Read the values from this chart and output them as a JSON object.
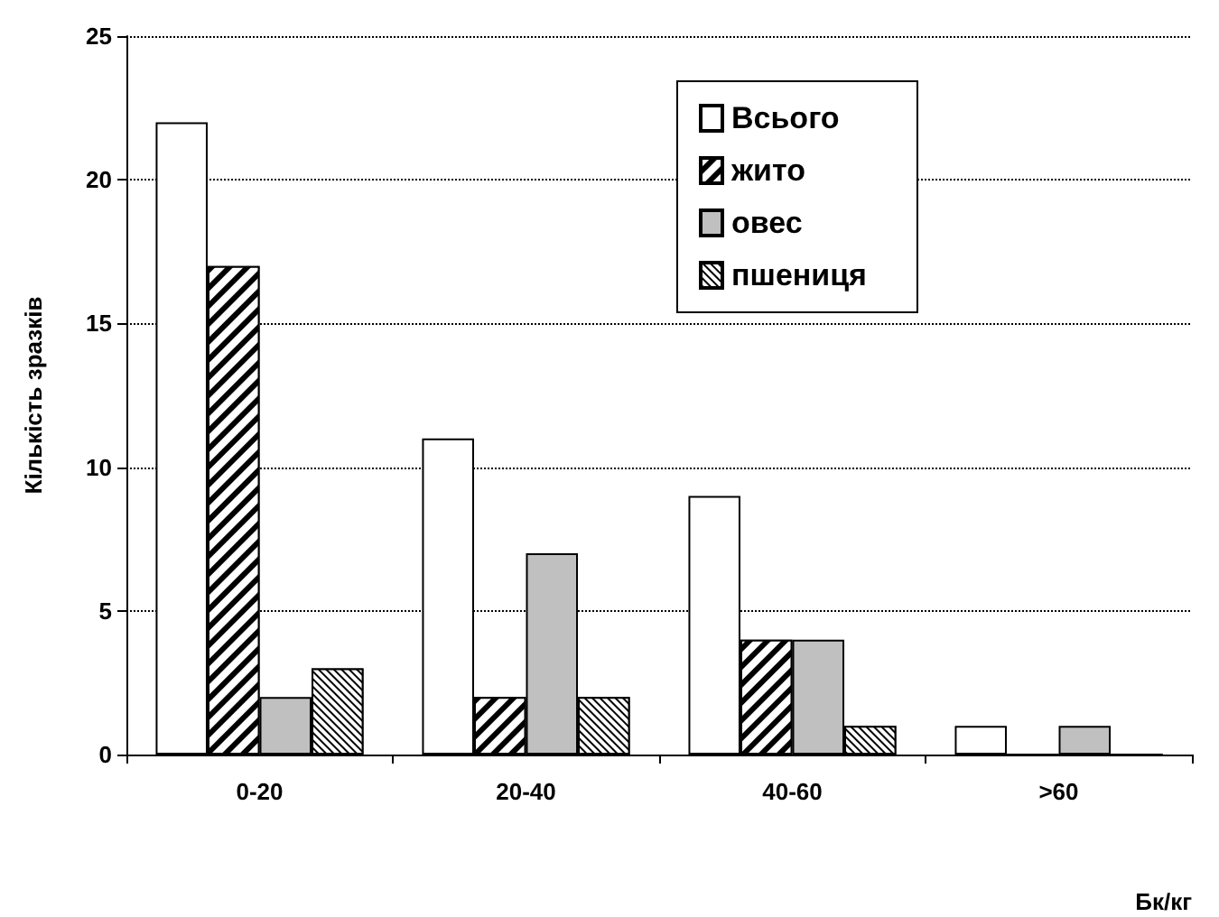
{
  "chart_data": {
    "type": "bar",
    "xlabel": "Бк/кг",
    "ylabel": "Кількість зразків",
    "categories": [
      "0-20",
      "20-40",
      "40-60",
      ">60"
    ],
    "series": [
      {
        "name": "Всього",
        "color": "#ffffff",
        "values": [
          22,
          11,
          9,
          1
        ]
      },
      {
        "name": "жито",
        "color": "#000000",
        "values": [
          17,
          2,
          4,
          0
        ]
      },
      {
        "name": "овес",
        "color": "#c0c0c0",
        "values": [
          2,
          7,
          4,
          1
        ]
      },
      {
        "name": "пшениця",
        "color": "#000000",
        "values": [
          3,
          2,
          1,
          0
        ]
      }
    ],
    "ylim": [
      0,
      25
    ],
    "yticks": [
      0,
      5,
      10,
      15,
      20,
      25
    ],
    "grid": "y",
    "legend": "top right"
  }
}
